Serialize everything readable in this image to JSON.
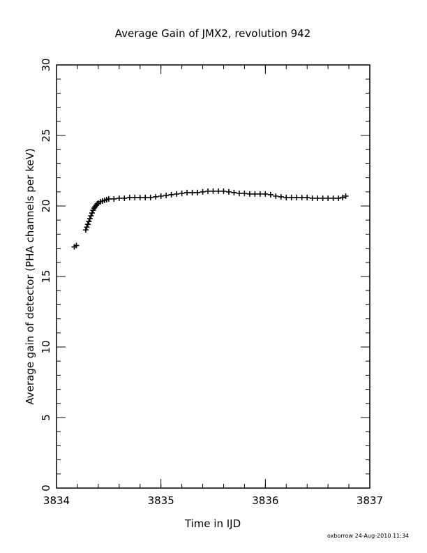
{
  "chart_data": {
    "type": "scatter",
    "title": "Average Gain of JMX2, revolution 942",
    "xlabel": "Time in IJD",
    "ylabel": "Average gain of detector (PHA channels per keV)",
    "xlim": [
      3834,
      3837
    ],
    "ylim": [
      0,
      30
    ],
    "x_major_ticks": [
      3834,
      3835,
      3836,
      3837
    ],
    "y_major_ticks": [
      0,
      5,
      10,
      15,
      20,
      25,
      30
    ],
    "x_minor_step": 0.2,
    "y_minor_step": 1,
    "marker": "+",
    "grid": false,
    "series": [
      {
        "x": [
          3834.17,
          3834.19,
          3834.28,
          3834.29,
          3834.3,
          3834.31,
          3834.32,
          3834.33,
          3834.34,
          3834.35,
          3834.36,
          3834.37,
          3834.38,
          3834.39,
          3834.4,
          3834.42,
          3834.44,
          3834.46,
          3834.48,
          3834.5,
          3834.55,
          3834.6,
          3834.65,
          3834.7,
          3834.75,
          3834.8,
          3834.85,
          3834.9,
          3834.95,
          3835.0,
          3835.05,
          3835.1,
          3835.15,
          3835.2,
          3835.25,
          3835.3,
          3835.35,
          3835.4,
          3835.45,
          3835.5,
          3835.55,
          3835.6,
          3835.65,
          3835.7,
          3835.75,
          3835.8,
          3835.85,
          3835.9,
          3835.95,
          3836.0,
          3836.05,
          3836.1,
          3836.15,
          3836.2,
          3836.25,
          3836.3,
          3836.35,
          3836.4,
          3836.45,
          3836.5,
          3836.55,
          3836.6,
          3836.65,
          3836.7,
          3836.74,
          3836.77
        ],
        "y": [
          17.1,
          17.2,
          18.3,
          18.5,
          18.7,
          18.9,
          19.1,
          19.3,
          19.5,
          19.7,
          19.85,
          19.95,
          20.05,
          20.15,
          20.2,
          20.3,
          20.35,
          20.4,
          20.45,
          20.5,
          20.5,
          20.55,
          20.55,
          20.6,
          20.6,
          20.6,
          20.6,
          20.6,
          20.65,
          20.7,
          20.75,
          20.8,
          20.85,
          20.9,
          20.95,
          20.95,
          20.95,
          21.0,
          21.05,
          21.05,
          21.05,
          21.05,
          21.0,
          20.95,
          20.9,
          20.9,
          20.85,
          20.85,
          20.85,
          20.85,
          20.8,
          20.7,
          20.65,
          20.6,
          20.6,
          20.6,
          20.6,
          20.6,
          20.55,
          20.55,
          20.55,
          20.55,
          20.55,
          20.55,
          20.6,
          20.7
        ]
      }
    ]
  },
  "footer": {
    "stamp": "oxborrow 24-Aug-2010 11:34"
  }
}
